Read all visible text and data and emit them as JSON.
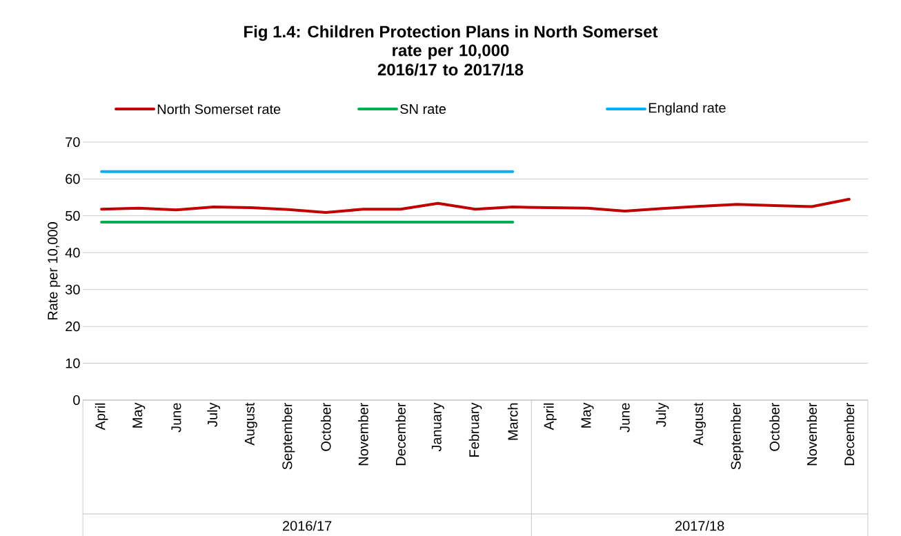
{
  "chart_data": {
    "type": "line",
    "title": "Fig 1.4: Children Protection Plans in North Somerset",
    "subtitle": "rate per 10,000 2016/17 to 2017/18",
    "ylabel": "Rate per 10,000",
    "categories": [
      "April",
      "May",
      "June",
      "July",
      "August",
      "September",
      "October",
      "November",
      "December",
      "January",
      "February",
      "March",
      "April",
      "May",
      "June",
      "July",
      "August",
      "September",
      "October",
      "November",
      "December"
    ],
    "annotations": [
      "2016/17",
      "2017/18"
    ],
    "series": [
      {
        "name": "North Somerset rate",
        "color": "#c00000",
        "values": [
          51.8,
          52.1,
          51.6,
          52.4,
          52.2,
          51.7,
          50.9,
          51.8,
          51.8,
          53.4,
          51.8,
          52.4,
          52.2,
          52.1,
          51.3,
          52.0,
          52.6,
          53.1,
          52.8,
          52.5,
          54.5
        ]
      },
      {
        "name": "SN rate",
        "color": "#00b050",
        "values": [
          48.3,
          48.3,
          48.3,
          48.3,
          48.3,
          48.3,
          48.3,
          48.3,
          48.3,
          48.3,
          48.3,
          48.3,
          null,
          null,
          null,
          null,
          null,
          null,
          null,
          null,
          null
        ]
      },
      {
        "name": "England rate",
        "color": "#00b0f0",
        "values": [
          62.0,
          62.0,
          62.0,
          62.0,
          62.0,
          62.0,
          62.0,
          62.0,
          62.0,
          62.0,
          62.0,
          62.0,
          null,
          null,
          null,
          null,
          null,
          null,
          null,
          null,
          null
        ]
      }
    ],
    "ylim": [
      0,
      70
    ],
    "yticks": [
      0,
      10,
      20,
      30,
      40,
      50,
      60,
      70
    ],
    "grid": "y",
    "legend": "top",
    "marker": "none",
    "line_style": "solid"
  }
}
